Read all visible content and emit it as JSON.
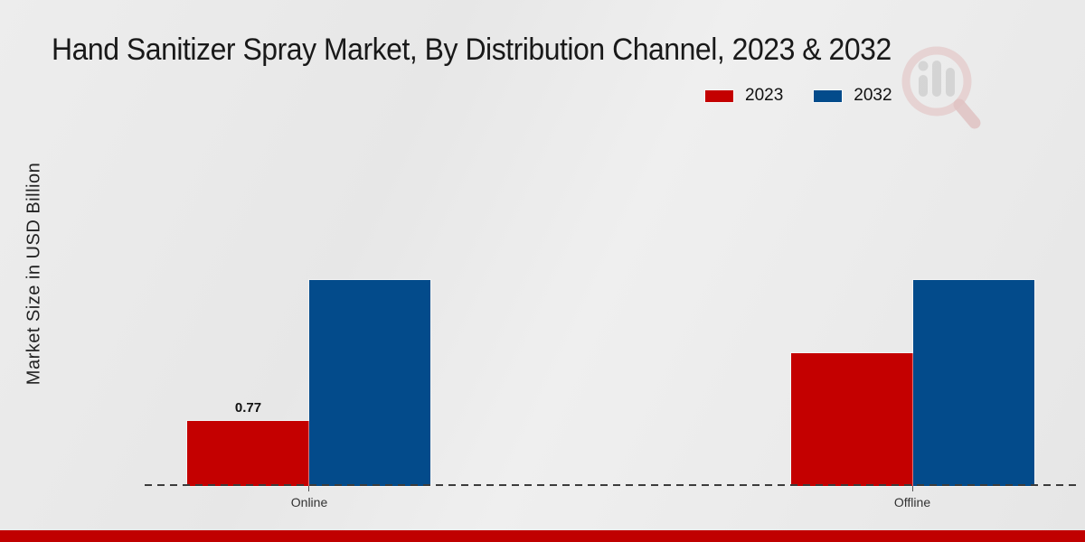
{
  "page": {
    "title": "Hand Sanitizer Spray Market, By Distribution Channel, 2023 & 2032",
    "y_axis_label": "Market Size in USD Billion",
    "footer_bar_color": "#c00000",
    "background_color": "#e9e9e9"
  },
  "legend": {
    "items": [
      {
        "label": "2023",
        "color": "#c40000"
      },
      {
        "label": "2032",
        "color": "#034b8b"
      }
    ]
  },
  "watermark_icon": "magnifier-bar-chart-logo",
  "chart_data": {
    "type": "bar",
    "title": "Hand Sanitizer Spray Market, By Distribution Channel, 2023 & 2032",
    "categories": [
      "Online",
      "Offline"
    ],
    "series": [
      {
        "name": "2023",
        "color": "#c40000",
        "values": [
          0.77,
          1.57
        ],
        "data_labels": [
          "0.77",
          ""
        ]
      },
      {
        "name": "2032",
        "color": "#034b8b",
        "values": [
          2.44,
          2.44
        ],
        "data_labels": [
          "",
          ""
        ]
      }
    ],
    "xlabel": "",
    "ylabel": "Market Size in USD Billion",
    "ylim": [
      0,
      2.8
    ],
    "grid": false,
    "y_axis_ticks_shown": false,
    "legend_position": "top-right",
    "baseline_style": "dashed"
  }
}
